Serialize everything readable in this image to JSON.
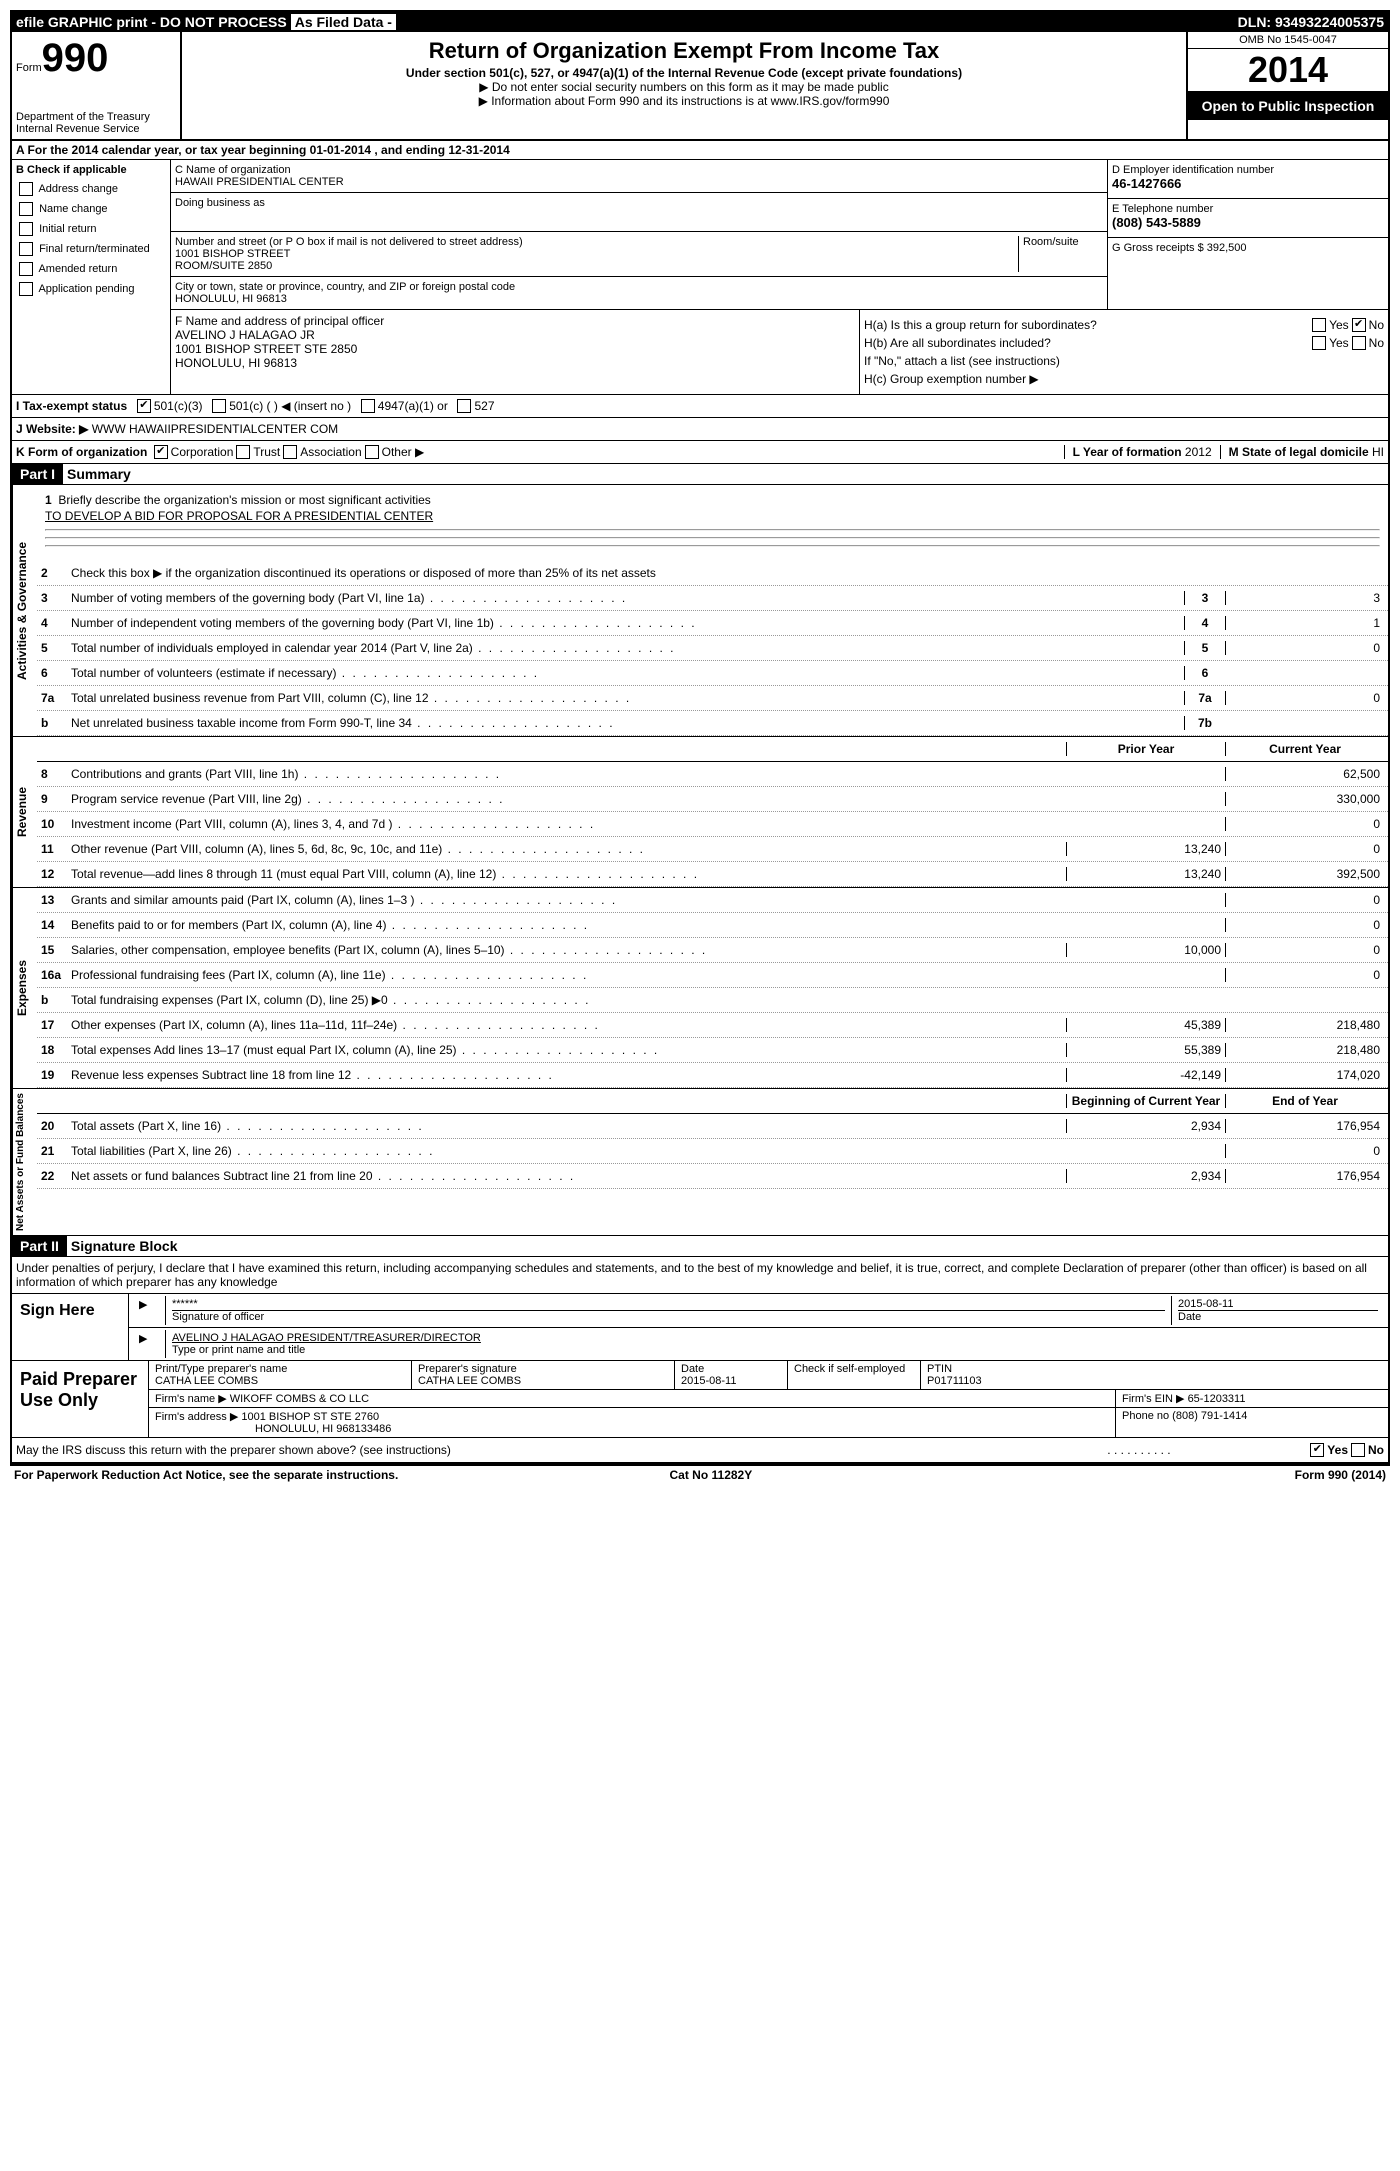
{
  "top_bar": {
    "efile": "efile GRAPHIC print - DO NOT PROCESS",
    "as_filed": "As Filed Data -",
    "dln_label": "DLN:",
    "dln": "93493224005375"
  },
  "header": {
    "form_label": "Form",
    "form_num": "990",
    "dept": "Department of the Treasury",
    "irs": "Internal Revenue Service",
    "title": "Return of Organization Exempt From Income Tax",
    "subtitle": "Under section 501(c), 527, or 4947(a)(1) of the Internal Revenue Code (except private foundations)",
    "note1": "▶ Do not enter social security numbers on this form as it may be made public",
    "note2": "▶ Information about Form 990 and its instructions is at www.IRS.gov/form990",
    "omb": "OMB No 1545-0047",
    "year": "2014",
    "open": "Open to Public Inspection"
  },
  "rowA": "A  For the 2014 calendar year, or tax year beginning 01-01-2014     , and ending 12-31-2014",
  "B": {
    "label": "B  Check if applicable",
    "items": [
      "Address change",
      "Name change",
      "Initial return",
      "Final return/terminated",
      "Amended return",
      "Application pending"
    ]
  },
  "C": {
    "name_label": "C Name of organization",
    "name": "HAWAII PRESIDENTIAL CENTER",
    "dba_label": "Doing business as",
    "addr_label": "Number and street (or P O box if mail is not delivered to street address)",
    "room_label": "Room/suite",
    "addr": "1001 BISHOP STREET",
    "room": "ROOM/SUITE 2850",
    "city_label": "City or town, state or province, country, and ZIP or foreign postal code",
    "city": "HONOLULU, HI  96813"
  },
  "D": {
    "label": "D Employer identification number",
    "value": "46-1427666"
  },
  "E": {
    "label": "E Telephone number",
    "value": "(808) 543-5889"
  },
  "G": {
    "label": "G Gross receipts $",
    "value": "392,500"
  },
  "F": {
    "label": "F  Name and address of principal officer",
    "name": "AVELINO J HALAGAO JR",
    "addr1": "1001 BISHOP STREET STE 2850",
    "addr2": "HONOLULU, HI  96813"
  },
  "H": {
    "a": "H(a)  Is this a group return for subordinates?",
    "a_no": true,
    "b": "H(b)  Are all subordinates included?",
    "b_note": "If \"No,\" attach a list  (see instructions)",
    "c": "H(c)  Group exemption number ▶"
  },
  "I": {
    "label": "I  Tax-exempt status",
    "opts": [
      "501(c)(3)",
      "501(c) (  ) ◀ (insert no )",
      "4947(a)(1) or",
      "527"
    ]
  },
  "J": {
    "label": "J  Website: ▶",
    "value": "WWW HAWAIIPRESIDENTIALCENTER COM"
  },
  "K": {
    "label": "K Form of organization",
    "opts": [
      "Corporation",
      "Trust",
      "Association",
      "Other ▶"
    ]
  },
  "L": {
    "label": "L Year of formation",
    "value": "2012"
  },
  "M": {
    "label": "M State of legal domicile",
    "value": "HI"
  },
  "part1": {
    "label": "Part I",
    "title": "Summary",
    "line1_label": "Briefly describe the organization's mission or most significant activities",
    "line1_text": "TO DEVELOP A BID FOR PROPOSAL FOR A PRESIDENTIAL CENTER",
    "line2": "Check this box ▶   if the organization discontinued its operations or disposed of more than 25% of its net assets",
    "gov_lines": [
      {
        "n": "3",
        "d": "Number of voting members of the governing body (Part VI, line 1a)",
        "k": "3",
        "v": "3"
      },
      {
        "n": "4",
        "d": "Number of independent voting members of the governing body (Part VI, line 1b)",
        "k": "4",
        "v": "1"
      },
      {
        "n": "5",
        "d": "Total number of individuals employed in calendar year 2014 (Part V, line 2a)",
        "k": "5",
        "v": "0"
      },
      {
        "n": "6",
        "d": "Total number of volunteers (estimate if necessary)",
        "k": "6",
        "v": ""
      },
      {
        "n": "7a",
        "d": "Total unrelated business revenue from Part VIII, column (C), line 12",
        "k": "7a",
        "v": "0"
      },
      {
        "n": "b",
        "d": "Net unrelated business taxable income from Form 990-T, line 34",
        "k": "7b",
        "v": ""
      }
    ],
    "col_hdr_a": "Prior Year",
    "col_hdr_b": "Current Year",
    "revenue": [
      {
        "n": "8",
        "d": "Contributions and grants (Part VIII, line 1h)",
        "a": "",
        "b": "62,500"
      },
      {
        "n": "9",
        "d": "Program service revenue (Part VIII, line 2g)",
        "a": "",
        "b": "330,000"
      },
      {
        "n": "10",
        "d": "Investment income (Part VIII, column (A), lines 3, 4, and 7d )",
        "a": "",
        "b": "0"
      },
      {
        "n": "11",
        "d": "Other revenue (Part VIII, column (A), lines 5, 6d, 8c, 9c, 10c, and 11e)",
        "a": "13,240",
        "b": "0"
      },
      {
        "n": "12",
        "d": "Total revenue—add lines 8 through 11 (must equal Part VIII, column (A), line 12)",
        "a": "13,240",
        "b": "392,500"
      }
    ],
    "expenses": [
      {
        "n": "13",
        "d": "Grants and similar amounts paid (Part IX, column (A), lines 1–3 )",
        "a": "",
        "b": "0"
      },
      {
        "n": "14",
        "d": "Benefits paid to or for members (Part IX, column (A), line 4)",
        "a": "",
        "b": "0"
      },
      {
        "n": "15",
        "d": "Salaries, other compensation, employee benefits (Part IX, column (A), lines 5–10)",
        "a": "10,000",
        "b": "0"
      },
      {
        "n": "16a",
        "d": "Professional fundraising fees (Part IX, column (A), line 11e)",
        "a": "",
        "b": "0"
      },
      {
        "n": "b",
        "d": "Total fundraising expenses (Part IX, column (D), line 25) ▶0",
        "a": "shaded",
        "b": "shaded"
      },
      {
        "n": "17",
        "d": "Other expenses (Part IX, column (A), lines 11a–11d, 11f–24e)",
        "a": "45,389",
        "b": "218,480"
      },
      {
        "n": "18",
        "d": "Total expenses  Add lines 13–17 (must equal Part IX, column (A), line 25)",
        "a": "55,389",
        "b": "218,480"
      },
      {
        "n": "19",
        "d": "Revenue less expenses  Subtract line 18 from line 12",
        "a": "-42,149",
        "b": "174,020"
      }
    ],
    "net_hdr_a": "Beginning of Current Year",
    "net_hdr_b": "End of Year",
    "net": [
      {
        "n": "20",
        "d": "Total assets (Part X, line 16)",
        "a": "2,934",
        "b": "176,954"
      },
      {
        "n": "21",
        "d": "Total liabilities (Part X, line 26)",
        "a": "",
        "b": "0"
      },
      {
        "n": "22",
        "d": "Net assets or fund balances  Subtract line 21 from line 20",
        "a": "2,934",
        "b": "176,954"
      }
    ]
  },
  "part2": {
    "label": "Part II",
    "title": "Signature Block",
    "perjury": "Under penalties of perjury, I declare that I have examined this return, including accompanying schedules and statements, and to the best of my knowledge and belief, it is true, correct, and complete  Declaration of preparer (other than officer) is based on all information of which preparer has any knowledge",
    "sign_here": "Sign Here",
    "sig_stars": "******",
    "sig_officer_label": "Signature of officer",
    "sig_date": "2015-08-11",
    "date_label": "Date",
    "officer_name": "AVELINO J HALAGAO PRESIDENT/TREASURER/DIRECTOR",
    "officer_name_label": "Type or print name and title",
    "paid_prep": "Paid Preparer Use Only",
    "prep_name_label": "Print/Type preparer's name",
    "prep_name": "CATHA LEE COMBS",
    "prep_sig_label": "Preparer's signature",
    "prep_sig": "CATHA LEE COMBS",
    "prep_date_label": "Date",
    "prep_date": "2015-08-11",
    "self_emp": "Check    if self-employed",
    "ptin_label": "PTIN",
    "ptin": "P01711103",
    "firm_name_label": "Firm's name    ▶",
    "firm_name": "WIKOFF COMBS & CO LLC",
    "firm_ein_label": "Firm's EIN ▶",
    "firm_ein": "65-1203311",
    "firm_addr_label": "Firm's address ▶",
    "firm_addr": "1001 BISHOP ST STE 2760",
    "firm_city": "HONOLULU, HI  968133486",
    "firm_phone_label": "Phone no",
    "firm_phone": "(808) 791-1414",
    "discuss": "May the IRS discuss this return with the preparer shown above? (see instructions)",
    "discuss_yes": true
  },
  "footer": {
    "pra": "For Paperwork Reduction Act Notice, see the separate instructions.",
    "cat": "Cat No 11282Y",
    "form": "Form 990 (2014)"
  }
}
